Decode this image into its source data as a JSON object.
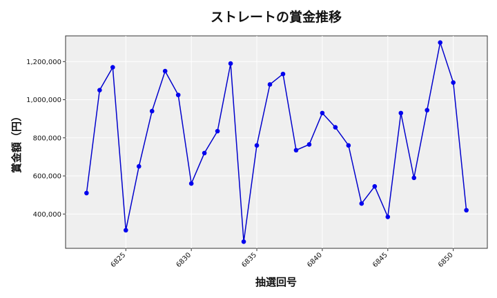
{
  "chart_data": {
    "type": "line",
    "title": "ストレートの賞金推移",
    "xlabel": "抽選回号",
    "ylabel": "賞金額（円）",
    "x": [
      6822,
      6823,
      6824,
      6825,
      6826,
      6827,
      6828,
      6829,
      6830,
      6831,
      6832,
      6833,
      6834,
      6835,
      6836,
      6837,
      6838,
      6839,
      6840,
      6841,
      6842,
      6843,
      6844,
      6845,
      6846,
      6847,
      6848,
      6849,
      6850,
      6851
    ],
    "values": [
      510000,
      1050000,
      1170000,
      315000,
      650000,
      940000,
      1150000,
      1025000,
      560000,
      720000,
      835000,
      1190000,
      255000,
      760000,
      1080000,
      1135000,
      735000,
      765000,
      930000,
      855000,
      760000,
      455000,
      545000,
      385000,
      930000,
      590000,
      945000,
      1300000,
      1090000,
      420000
    ],
    "xlim": [
      6820.4,
      6852.6
    ],
    "ylim": [
      220000,
      1335000
    ],
    "xticks": [
      6825,
      6830,
      6835,
      6840,
      6845,
      6850
    ],
    "yticks": [
      400000,
      600000,
      800000,
      1000000,
      1200000
    ],
    "ytick_labels": [
      "400,000",
      "600,000",
      "800,000",
      "1,000,000",
      "1,200,000"
    ],
    "grid": true,
    "line_color": "#0000cc",
    "marker_color": "#0000ee",
    "plot_background": "#efefef"
  }
}
